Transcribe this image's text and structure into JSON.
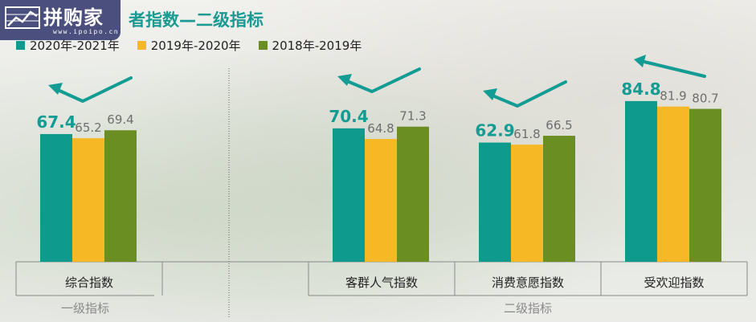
{
  "logo": {
    "name": "拼购家",
    "url": "www.ipoipo.cn"
  },
  "title": "者指数—二级指标",
  "colors": {
    "s2021": "#0f9a8e",
    "s2020": "#f7b825",
    "s2019": "#6b8e23",
    "arrow": "#139c93"
  },
  "chart_data": {
    "type": "bar",
    "categories": [
      "综合指数",
      "客群人气指数",
      "消费意愿指数",
      "受欢迎指数"
    ],
    "groups": [
      {
        "label": "一级指标",
        "categories": [
          "综合指数"
        ]
      },
      {
        "label": "二级指标",
        "categories": [
          "客群人气指数",
          "消费意愿指数",
          "受欢迎指数"
        ]
      }
    ],
    "series": [
      {
        "name": "2020年-2021年",
        "values": [
          67.4,
          70.4,
          62.9,
          84.8
        ]
      },
      {
        "name": "2019年-2020年",
        "values": [
          65.2,
          64.8,
          61.8,
          81.9
        ]
      },
      {
        "name": "2018年-2019年",
        "values": [
          69.4,
          71.3,
          66.5,
          80.7
        ]
      }
    ],
    "legend": "top-left"
  }
}
